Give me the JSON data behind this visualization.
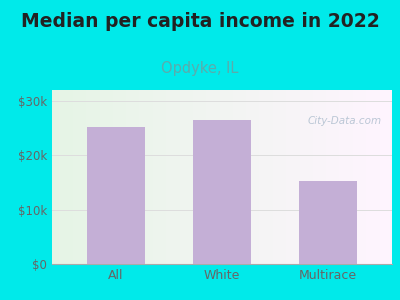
{
  "title": "Median per capita income in 2022",
  "subtitle": "Opdyke, IL",
  "categories": [
    "All",
    "White",
    "Multirace"
  ],
  "values": [
    25200,
    26500,
    15200
  ],
  "bar_color": "#c4afd6",
  "background_color": "#00eaea",
  "yticks": [
    0,
    10000,
    20000,
    30000
  ],
  "ytick_labels": [
    "$0",
    "$10k",
    "$20k",
    "$30k"
  ],
  "ylim": [
    0,
    32000
  ],
  "title_fontsize": 13.5,
  "subtitle_fontsize": 10.5,
  "subtitle_color": "#5aacac",
  "tick_label_color": "#666666",
  "watermark": "City-Data.com",
  "watermark_color": "#b0bfcf",
  "grid_color": "#dddddd"
}
